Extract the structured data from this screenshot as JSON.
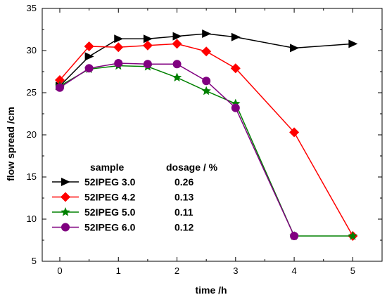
{
  "chart_data": {
    "type": "line",
    "xlabel": "time /h",
    "ylabel": "flow spread /cm",
    "xlim": [
      -0.3,
      5.5
    ],
    "ylim": [
      5,
      35
    ],
    "xticks": [
      0,
      1,
      2,
      3,
      4,
      5
    ],
    "yticks": [
      5,
      10,
      15,
      20,
      25,
      30,
      35
    ],
    "grid": false,
    "legend_position": "lower-left",
    "legend_headers": {
      "sample": "sample",
      "dosage": "dosage / %"
    },
    "series": [
      {
        "name": "52IPEG 3.0",
        "dosage": "0.26",
        "color": "#000000",
        "marker": "triangle-right",
        "x": [
          0,
          0.5,
          1,
          1.5,
          2,
          2.5,
          3,
          4,
          5
        ],
        "y": [
          25.8,
          29.3,
          31.4,
          31.4,
          31.7,
          32.0,
          31.6,
          30.3,
          30.8
        ]
      },
      {
        "name": "52IPEG 4.2",
        "dosage": "0.13",
        "color": "#ff0000",
        "marker": "diamond",
        "x": [
          0,
          0.5,
          1,
          1.5,
          2,
          2.5,
          3,
          4,
          5
        ],
        "y": [
          26.5,
          30.5,
          30.4,
          30.6,
          30.8,
          29.9,
          27.9,
          20.3,
          8.0
        ]
      },
      {
        "name": "52IPEG 5.0",
        "dosage": "0.11",
        "color": "#008000",
        "marker": "star",
        "x": [
          0,
          0.5,
          1,
          1.5,
          2,
          2.5,
          3,
          4,
          5
        ],
        "y": [
          25.8,
          27.8,
          28.2,
          28.1,
          26.8,
          25.2,
          23.7,
          8.0,
          8.0
        ]
      },
      {
        "name": "52IPEG 6.0",
        "dosage": "0.12",
        "color": "#800080",
        "marker": "circle",
        "x": [
          0,
          0.5,
          1,
          1.5,
          2,
          2.5,
          3,
          4
        ],
        "y": [
          25.6,
          27.9,
          28.5,
          28.4,
          28.4,
          26.4,
          23.2,
          8.0
        ]
      }
    ]
  }
}
